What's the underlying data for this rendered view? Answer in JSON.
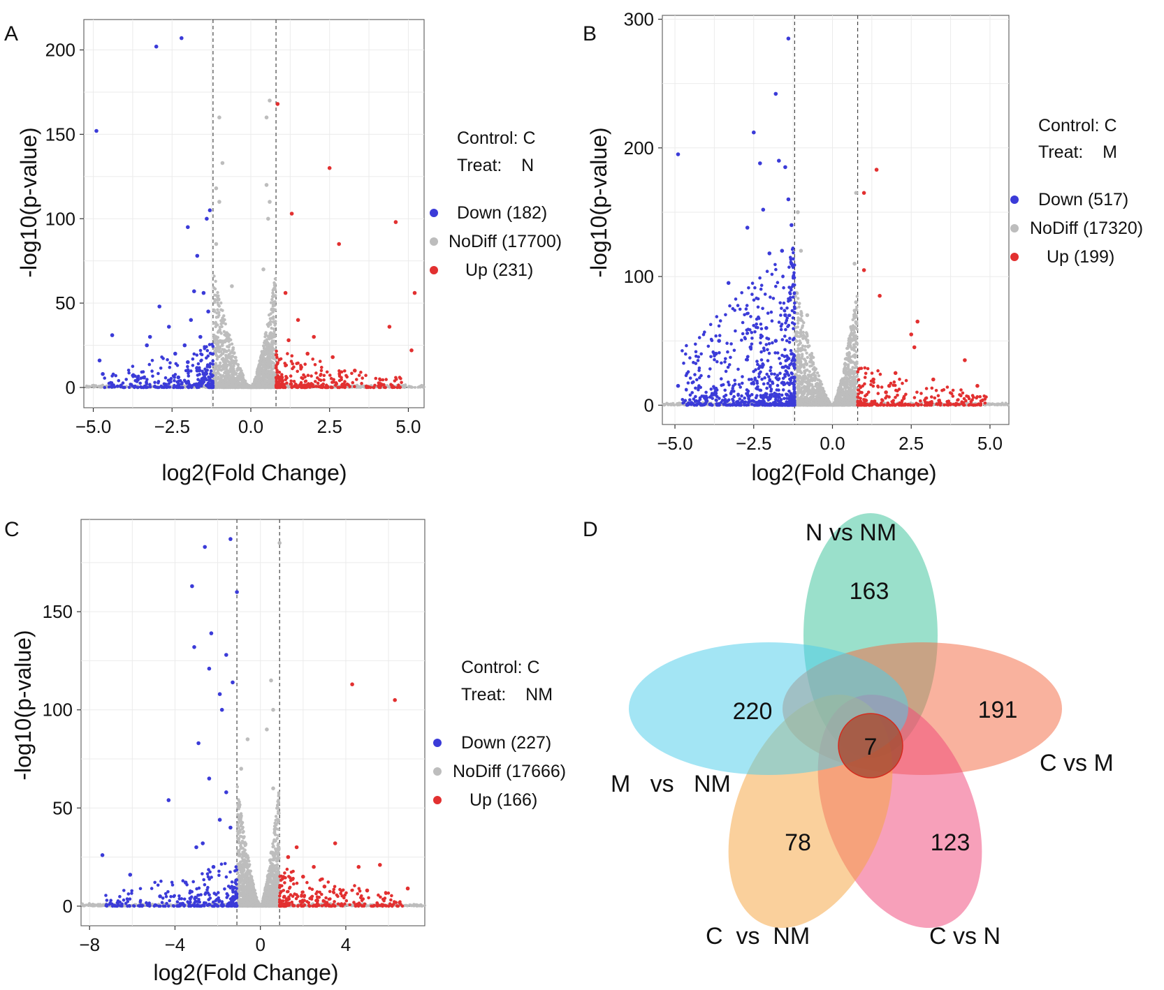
{
  "chart_data": [
    {
      "type": "scatter",
      "panel": "A",
      "xlabel": "log2(Fold Change)",
      "ylabel": "-log10(p-value)",
      "xlim": [
        -5.3,
        5.5
      ],
      "ylim": [
        -12,
        218
      ],
      "xticks": [
        -5.0,
        -2.5,
        0.0,
        2.5,
        5.0
      ],
      "xtick_labels": [
        "−5.0",
        "−2.5",
        "0.0",
        "2.5",
        "5.0"
      ],
      "yticks": [
        0,
        50,
        100,
        150,
        200
      ],
      "ytick_labels": [
        "0",
        "50",
        "100",
        "150",
        "200"
      ],
      "threshold_x": [
        -1.2,
        0.8
      ],
      "threshold_y": 0,
      "legend_control": "Control: C",
      "legend_treat": "Treat:    N",
      "series": [
        {
          "name": "Down",
          "label": "Down (182)",
          "count": 182,
          "color": "#3b3bd8",
          "points": [
            [
              -4.9,
              152
            ],
            [
              -3.0,
              202
            ],
            [
              -2.2,
              207
            ],
            [
              -4.8,
              16
            ],
            [
              -4.4,
              31
            ],
            [
              -2.9,
              48
            ],
            [
              -2.6,
              36
            ],
            [
              -2.0,
              95
            ],
            [
              -1.7,
              78
            ],
            [
              -1.4,
              100
            ],
            [
              -1.3,
              105
            ],
            [
              -1.5,
              56
            ],
            [
              -1.8,
              57
            ],
            [
              -3.2,
              30
            ],
            [
              -4.7,
              8
            ],
            [
              -2.4,
              20
            ],
            [
              -1.9,
              40
            ],
            [
              -1.6,
              30
            ],
            [
              -2.1,
              25
            ],
            [
              -3.3,
              25
            ],
            [
              -1.35,
              45
            ],
            [
              -2.3,
              6
            ],
            [
              -1.7,
              10
            ],
            [
              -1.5,
              8
            ],
            [
              -2.0,
              15
            ]
          ]
        },
        {
          "name": "NoDiff",
          "label": "NoDiff (17700)",
          "count": 17700,
          "color": "#bdbdbd",
          "points": [
            [
              -1.0,
              160
            ],
            [
              -0.9,
              133
            ],
            [
              -1.1,
              118
            ],
            [
              -1.0,
              110
            ],
            [
              0.5,
              160
            ],
            [
              0.6,
              170
            ],
            [
              0.5,
              120
            ],
            [
              0.6,
              110
            ],
            [
              -0.6,
              60
            ],
            [
              0.4,
              70
            ],
            [
              -1.1,
              85
            ],
            [
              0.55,
              100
            ]
          ]
        },
        {
          "name": "Up",
          "label": "Up (231)",
          "count": 231,
          "color": "#e23030",
          "points": [
            [
              0.85,
              168
            ],
            [
              2.5,
              130
            ],
            [
              1.3,
              103
            ],
            [
              4.6,
              98
            ],
            [
              2.8,
              85
            ],
            [
              5.2,
              56
            ],
            [
              1.1,
              56
            ],
            [
              4.4,
              36
            ],
            [
              5.1,
              22
            ],
            [
              1.5,
              40
            ],
            [
              2.0,
              30
            ],
            [
              1.8,
              20
            ],
            [
              2.6,
              18
            ],
            [
              1.2,
              28
            ],
            [
              3.3,
              10
            ],
            [
              1.6,
              12
            ]
          ]
        }
      ]
    },
    {
      "type": "scatter",
      "panel": "B",
      "xlabel": "log2(Fold Change)",
      "ylabel": "-log10(p-value)",
      "xlim": [
        -5.4,
        5.6
      ],
      "ylim": [
        -15,
        303
      ],
      "xticks": [
        -5.0,
        -2.5,
        0.0,
        2.5,
        5.0
      ],
      "xtick_labels": [
        "−5.0",
        "−2.5",
        "0.0",
        "2.5",
        "5.0"
      ],
      "yticks": [
        0,
        100,
        200,
        300
      ],
      "ytick_labels": [
        "0",
        "100",
        "200",
        "300"
      ],
      "threshold_x": [
        -1.2,
        0.8
      ],
      "threshold_y": 0,
      "legend_control": "Control: C",
      "legend_treat": "Treat:    M",
      "series": [
        {
          "name": "Down",
          "label": "Down (517)",
          "count": 517,
          "color": "#3b3bd8",
          "points": [
            [
              -4.9,
              195
            ],
            [
              -2.5,
              212
            ],
            [
              -2.3,
              188
            ],
            [
              -2.2,
              152
            ],
            [
              -2.0,
              118
            ],
            [
              -1.8,
              242
            ],
            [
              -1.7,
              190
            ],
            [
              -1.5,
              185
            ],
            [
              -1.4,
              160
            ],
            [
              -1.3,
              140
            ],
            [
              -1.4,
              285
            ],
            [
              -2.7,
              138
            ],
            [
              -3.3,
              95
            ],
            [
              -1.6,
              120
            ],
            [
              -1.3,
              110
            ],
            [
              -3.6,
              50
            ],
            [
              -3.7,
              40
            ],
            [
              -2.1,
              60
            ],
            [
              -2.6,
              45
            ],
            [
              -4.9,
              15
            ],
            [
              -1.8,
              50
            ],
            [
              -1.5,
              70
            ],
            [
              -2.3,
              30
            ]
          ]
        },
        {
          "name": "NoDiff",
          "label": "NoDiff (17320)",
          "count": 17320,
          "color": "#bdbdbd",
          "points": [
            [
              -1.1,
              150
            ],
            [
              -1.0,
              120
            ],
            [
              0.75,
              165
            ],
            [
              0.7,
              110
            ],
            [
              0.75,
              80
            ],
            [
              -0.8,
              70
            ],
            [
              0.6,
              60
            ]
          ]
        },
        {
          "name": "Up",
          "label": "Up (199)",
          "count": 199,
          "color": "#e23030",
          "points": [
            [
              1.4,
              183
            ],
            [
              1.0,
              165
            ],
            [
              1.0,
              105
            ],
            [
              1.5,
              85
            ],
            [
              2.7,
              65
            ],
            [
              2.5,
              55
            ],
            [
              2.6,
              45
            ],
            [
              4.2,
              35
            ],
            [
              4.6,
              15
            ],
            [
              3.2,
              20
            ],
            [
              2.0,
              25
            ],
            [
              1.3,
              20
            ],
            [
              1.7,
              10
            ],
            [
              1.8,
              15
            ]
          ]
        }
      ]
    },
    {
      "type": "scatter",
      "panel": "C",
      "xlabel": "log2(Fold Change)",
      "ylabel": "-log10(p-value)",
      "xlim": [
        -8.4,
        7.7
      ],
      "ylim": [
        -10,
        197
      ],
      "xticks": [
        -8,
        -4,
        0,
        4
      ],
      "xtick_labels": [
        "−8",
        "−4",
        "0",
        "4"
      ],
      "yticks": [
        0,
        50,
        100,
        150
      ],
      "ytick_labels": [
        "0",
        "50",
        "100",
        "150"
      ],
      "threshold_x": [
        -1.1,
        0.9
      ],
      "threshold_y": 0,
      "legend_control": "Control: C",
      "legend_treat": "Treat:    NM",
      "series": [
        {
          "name": "Down",
          "label": "Down (227)",
          "count": 227,
          "color": "#3b3bd8",
          "points": [
            [
              -2.6,
              183
            ],
            [
              -1.4,
              187
            ],
            [
              -1.1,
              160
            ],
            [
              -3.2,
              163
            ],
            [
              -2.3,
              139
            ],
            [
              -3.1,
              132
            ],
            [
              -1.6,
              128
            ],
            [
              -2.4,
              121
            ],
            [
              -1.3,
              114
            ],
            [
              -1.9,
              108
            ],
            [
              -1.8,
              100
            ],
            [
              -2.9,
              83
            ],
            [
              -4.3,
              54
            ],
            [
              -2.4,
              65
            ],
            [
              -1.6,
              58
            ],
            [
              -2.7,
              32
            ],
            [
              -3.0,
              30
            ],
            [
              -7.4,
              26
            ],
            [
              -6.1,
              16
            ],
            [
              -4.7,
              5
            ],
            [
              -1.9,
              44
            ],
            [
              -1.4,
              40
            ],
            [
              -2.2,
              20
            ],
            [
              -3.5,
              12
            ]
          ]
        },
        {
          "name": "NoDiff",
          "label": "NoDiff (17666)",
          "count": 17666,
          "color": "#bdbdbd",
          "points": [
            [
              0.9,
              185
            ],
            [
              0.5,
              115
            ],
            [
              0.6,
              100
            ],
            [
              0.3,
              90
            ],
            [
              -0.6,
              85
            ],
            [
              -0.9,
              70
            ],
            [
              0.6,
              60
            ]
          ]
        },
        {
          "name": "Up",
          "label": "Up (166)",
          "count": 166,
          "color": "#e23030",
          "points": [
            [
              4.3,
              113
            ],
            [
              6.3,
              105
            ],
            [
              3.5,
              32
            ],
            [
              5.6,
              21
            ],
            [
              4.6,
              20
            ],
            [
              6.9,
              9
            ],
            [
              1.7,
              30
            ],
            [
              2.5,
              20
            ],
            [
              1.3,
              25
            ],
            [
              3.0,
              10
            ],
            [
              5.0,
              8
            ],
            [
              2.0,
              15
            ]
          ]
        }
      ]
    },
    {
      "type": "venn",
      "panel": "D",
      "sets": [
        {
          "name": "N vs NM",
          "unique": 163,
          "color": "#3dc39b"
        },
        {
          "name": "C vs M",
          "unique": 191,
          "color": "#f46b45"
        },
        {
          "name": "C vs N",
          "unique": 123,
          "color": "#f0497a"
        },
        {
          "name": "C  vs  NM",
          "unique": 78,
          "color": "#f5a442"
        },
        {
          "name": "M   vs   NM",
          "unique": 220,
          "color": "#4fcdea"
        }
      ],
      "intersection_all": 7,
      "intersection_color": "#a84f37"
    }
  ]
}
